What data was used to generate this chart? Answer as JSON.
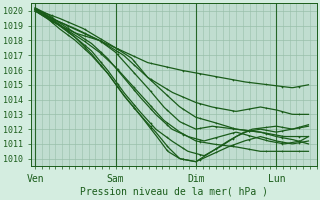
{
  "xlabel": "Pression niveau de la mer( hPa )",
  "bg_color": "#d4ede0",
  "plot_bg_color": "#c0ddd0",
  "grid_major_color": "#98bfaa",
  "grid_minor_color": "#b0d0be",
  "line_color": "#1a5c1a",
  "x_ticks_labels": [
    "Ven",
    "Sam",
    "Dim",
    "Lun"
  ],
  "x_ticks_pos": [
    0.0,
    1.0,
    2.0,
    3.0
  ],
  "ylim": [
    1009.5,
    1020.5
  ],
  "xlim": [
    -0.05,
    3.5
  ],
  "yticks": [
    1010,
    1011,
    1012,
    1013,
    1014,
    1015,
    1016,
    1017,
    1018,
    1019,
    1020
  ],
  "lines": [
    {
      "waypoints_x": [
        0,
        0.3,
        0.6,
        1.0,
        1.4,
        1.8,
        2.0,
        2.3,
        2.6,
        2.9,
        3.2,
        3.4
      ],
      "waypoints_y": [
        1020.1,
        1019.5,
        1018.8,
        1017.5,
        1016.5,
        1016.0,
        1015.8,
        1015.5,
        1015.2,
        1015.0,
        1014.8,
        1015.0
      ]
    },
    {
      "waypoints_x": [
        0,
        0.2,
        0.5,
        0.8,
        1.0,
        1.2,
        1.4,
        1.7,
        2.0,
        2.2,
        2.5,
        2.8,
        3.0,
        3.2,
        3.4
      ],
      "waypoints_y": [
        1020.0,
        1019.3,
        1018.5,
        1018.0,
        1017.5,
        1016.8,
        1015.5,
        1014.5,
        1013.8,
        1013.5,
        1013.2,
        1013.5,
        1013.3,
        1013.0,
        1013.0
      ]
    },
    {
      "waypoints_x": [
        0,
        0.2,
        0.4,
        0.6,
        0.8,
        1.0,
        1.2,
        1.4,
        1.6,
        1.8,
        2.0,
        2.2,
        2.5,
        2.8,
        3.1,
        3.4
      ],
      "waypoints_y": [
        1020.1,
        1019.5,
        1019.0,
        1018.5,
        1018.0,
        1017.2,
        1016.0,
        1014.8,
        1013.5,
        1012.5,
        1012.0,
        1012.2,
        1012.0,
        1011.8,
        1011.5,
        1011.5
      ]
    },
    {
      "waypoints_x": [
        0,
        0.15,
        0.3,
        0.5,
        0.7,
        0.9,
        1.1,
        1.3,
        1.5,
        1.7,
        1.9,
        2.1,
        2.3,
        2.5,
        2.7,
        2.9,
        3.1,
        3.3,
        3.4
      ],
      "waypoints_y": [
        1020.2,
        1019.8,
        1019.2,
        1018.5,
        1017.8,
        1016.8,
        1015.5,
        1014.2,
        1013.0,
        1012.0,
        1011.5,
        1011.2,
        1011.5,
        1011.8,
        1011.5,
        1011.2,
        1011.0,
        1011.2,
        1011.5
      ]
    },
    {
      "waypoints_x": [
        0,
        0.15,
        0.3,
        0.5,
        0.7,
        0.9,
        1.1,
        1.3,
        1.5,
        1.7,
        1.9,
        2.1,
        2.3,
        2.5,
        2.7,
        3.0,
        3.2,
        3.4
      ],
      "waypoints_y": [
        1020.1,
        1019.6,
        1019.0,
        1018.2,
        1017.3,
        1016.0,
        1014.5,
        1013.2,
        1012.0,
        1011.2,
        1010.5,
        1010.2,
        1010.8,
        1011.5,
        1012.0,
        1012.2,
        1012.0,
        1012.2
      ]
    },
    {
      "waypoints_x": [
        0,
        0.15,
        0.3,
        0.5,
        0.7,
        0.9,
        1.1,
        1.3,
        1.5,
        1.65,
        1.8,
        2.0,
        2.2,
        2.4,
        2.6,
        2.8,
        3.0,
        3.2,
        3.4
      ],
      "waypoints_y": [
        1020.0,
        1019.5,
        1018.8,
        1018.0,
        1017.0,
        1015.8,
        1014.3,
        1013.0,
        1011.8,
        1010.8,
        1010.0,
        1009.8,
        1010.5,
        1011.2,
        1011.8,
        1012.0,
        1011.8,
        1012.0,
        1012.3
      ]
    },
    {
      "waypoints_x": [
        0,
        0.15,
        0.3,
        0.5,
        0.7,
        0.9,
        1.1,
        1.3,
        1.5,
        1.65,
        1.8,
        2.0,
        2.2,
        2.4,
        2.6,
        2.8,
        3.0,
        3.2,
        3.4
      ],
      "waypoints_y": [
        1020.2,
        1019.7,
        1019.1,
        1018.2,
        1017.1,
        1015.8,
        1014.3,
        1013.0,
        1011.6,
        1010.5,
        1010.0,
        1009.8,
        1010.3,
        1010.8,
        1011.2,
        1011.5,
        1011.2,
        1011.0,
        1011.2
      ]
    },
    {
      "waypoints_x": [
        0,
        0.2,
        0.4,
        0.6,
        0.8,
        1.0,
        1.2,
        1.4,
        1.6,
        1.8,
        2.0,
        2.2,
        2.5,
        2.8,
        3.1,
        3.4
      ],
      "waypoints_y": [
        1020.0,
        1019.4,
        1018.7,
        1018.0,
        1017.2,
        1016.2,
        1015.0,
        1013.8,
        1012.6,
        1011.8,
        1011.2,
        1011.0,
        1010.8,
        1010.5,
        1010.5,
        1010.5
      ]
    },
    {
      "waypoints_x": [
        0,
        0.2,
        0.5,
        0.8,
        1.1,
        1.4,
        1.6,
        1.8,
        2.0,
        2.2,
        2.5,
        2.8,
        3.0,
        3.2,
        3.4
      ],
      "waypoints_y": [
        1020.1,
        1019.5,
        1018.8,
        1018.0,
        1017.0,
        1015.5,
        1014.5,
        1013.5,
        1012.8,
        1012.5,
        1012.0,
        1011.8,
        1011.5,
        1011.3,
        1011.0
      ]
    }
  ]
}
